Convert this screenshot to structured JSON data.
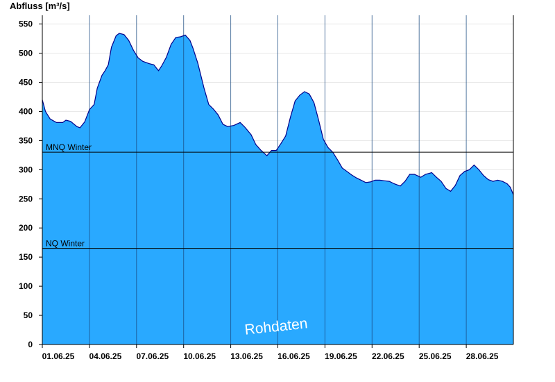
{
  "chart_data": {
    "type": "area",
    "ylabel": "Abfluss [m³/s]",
    "ylim": [
      0,
      565
    ],
    "yticks": [
      0,
      50,
      100,
      150,
      200,
      250,
      300,
      350,
      400,
      450,
      500,
      550
    ],
    "x_range_days": [
      0,
      30
    ],
    "xticks": [
      {
        "day": 0,
        "label": "01.06.25"
      },
      {
        "day": 3,
        "label": "04.06.25"
      },
      {
        "day": 6,
        "label": "07.06.25"
      },
      {
        "day": 9,
        "label": "10.06.25"
      },
      {
        "day": 12,
        "label": "13.06.25"
      },
      {
        "day": 15,
        "label": "16.06.25"
      },
      {
        "day": 18,
        "label": "19.06.25"
      },
      {
        "day": 21,
        "label": "22.06.25"
      },
      {
        "day": 24,
        "label": "25.06.25"
      },
      {
        "day": 27,
        "label": "28.06.25"
      }
    ],
    "grid_vertical": true,
    "grid_horizontal": true,
    "fill_color": "#29a9ff",
    "line_color": "#00008b",
    "series": [
      {
        "x": [
          0,
          0.2,
          0.5,
          0.9,
          1.3,
          1.5,
          1.8,
          2.2,
          2.4,
          2.7,
          3.0,
          3.3,
          3.5,
          3.8,
          4.0,
          4.2,
          4.4,
          4.7,
          4.9,
          5.2,
          5.5,
          5.8,
          6.1,
          6.4,
          6.8,
          7.1,
          7.4,
          7.6,
          7.9,
          8.2,
          8.5,
          8.8,
          9.1,
          9.4,
          9.6,
          9.9,
          10.3,
          10.6,
          10.9,
          11.2,
          11.5,
          11.8,
          12.2,
          12.6,
          12.9,
          13.3,
          13.6,
          13.9,
          14.3,
          14.6,
          14.9,
          15.2,
          15.5,
          15.8,
          16.1,
          16.4,
          16.7,
          17.0,
          17.3,
          17.6,
          17.9,
          18.2,
          18.5,
          18.8,
          19.1,
          19.4,
          19.7,
          20.0,
          20.3,
          20.6,
          20.9,
          21.2,
          21.5,
          21.8,
          22.1,
          22.4,
          22.8,
          23.1,
          23.4,
          23.7,
          24.1,
          24.4,
          24.8,
          25.1,
          25.4,
          25.7,
          26.0,
          26.3,
          26.6,
          26.9,
          27.2,
          27.5,
          27.8,
          28.1,
          28.4,
          28.7,
          29.0,
          29.3,
          29.6,
          29.8,
          30.0
        ],
        "y": [
          420,
          400,
          387,
          381,
          381,
          385,
          383,
          374,
          372,
          382,
          403,
          412,
          440,
          462,
          470,
          480,
          510,
          530,
          534,
          532,
          522,
          505,
          492,
          486,
          482,
          480,
          470,
          478,
          493,
          515,
          527,
          528,
          531,
          522,
          508,
          483,
          440,
          412,
          404,
          394,
          378,
          374,
          376,
          381,
          373,
          360,
          343,
          334,
          324,
          333,
          333,
          345,
          358,
          390,
          418,
          428,
          434,
          430,
          415,
          385,
          352,
          338,
          330,
          317,
          303,
          297,
          291,
          286,
          282,
          278,
          279,
          282,
          282,
          281,
          280,
          276,
          272,
          280,
          292,
          292,
          287,
          292,
          295,
          287,
          280,
          268,
          263,
          273,
          290,
          297,
          300,
          308,
          300,
          290,
          283,
          280,
          282,
          280,
          276,
          270,
          257
        ]
      }
    ],
    "reference_lines": [
      {
        "label": "MNQ Winter",
        "y": 330
      },
      {
        "label": "NQ Winter",
        "y": 165
      }
    ],
    "watermark": "Rohdaten"
  }
}
